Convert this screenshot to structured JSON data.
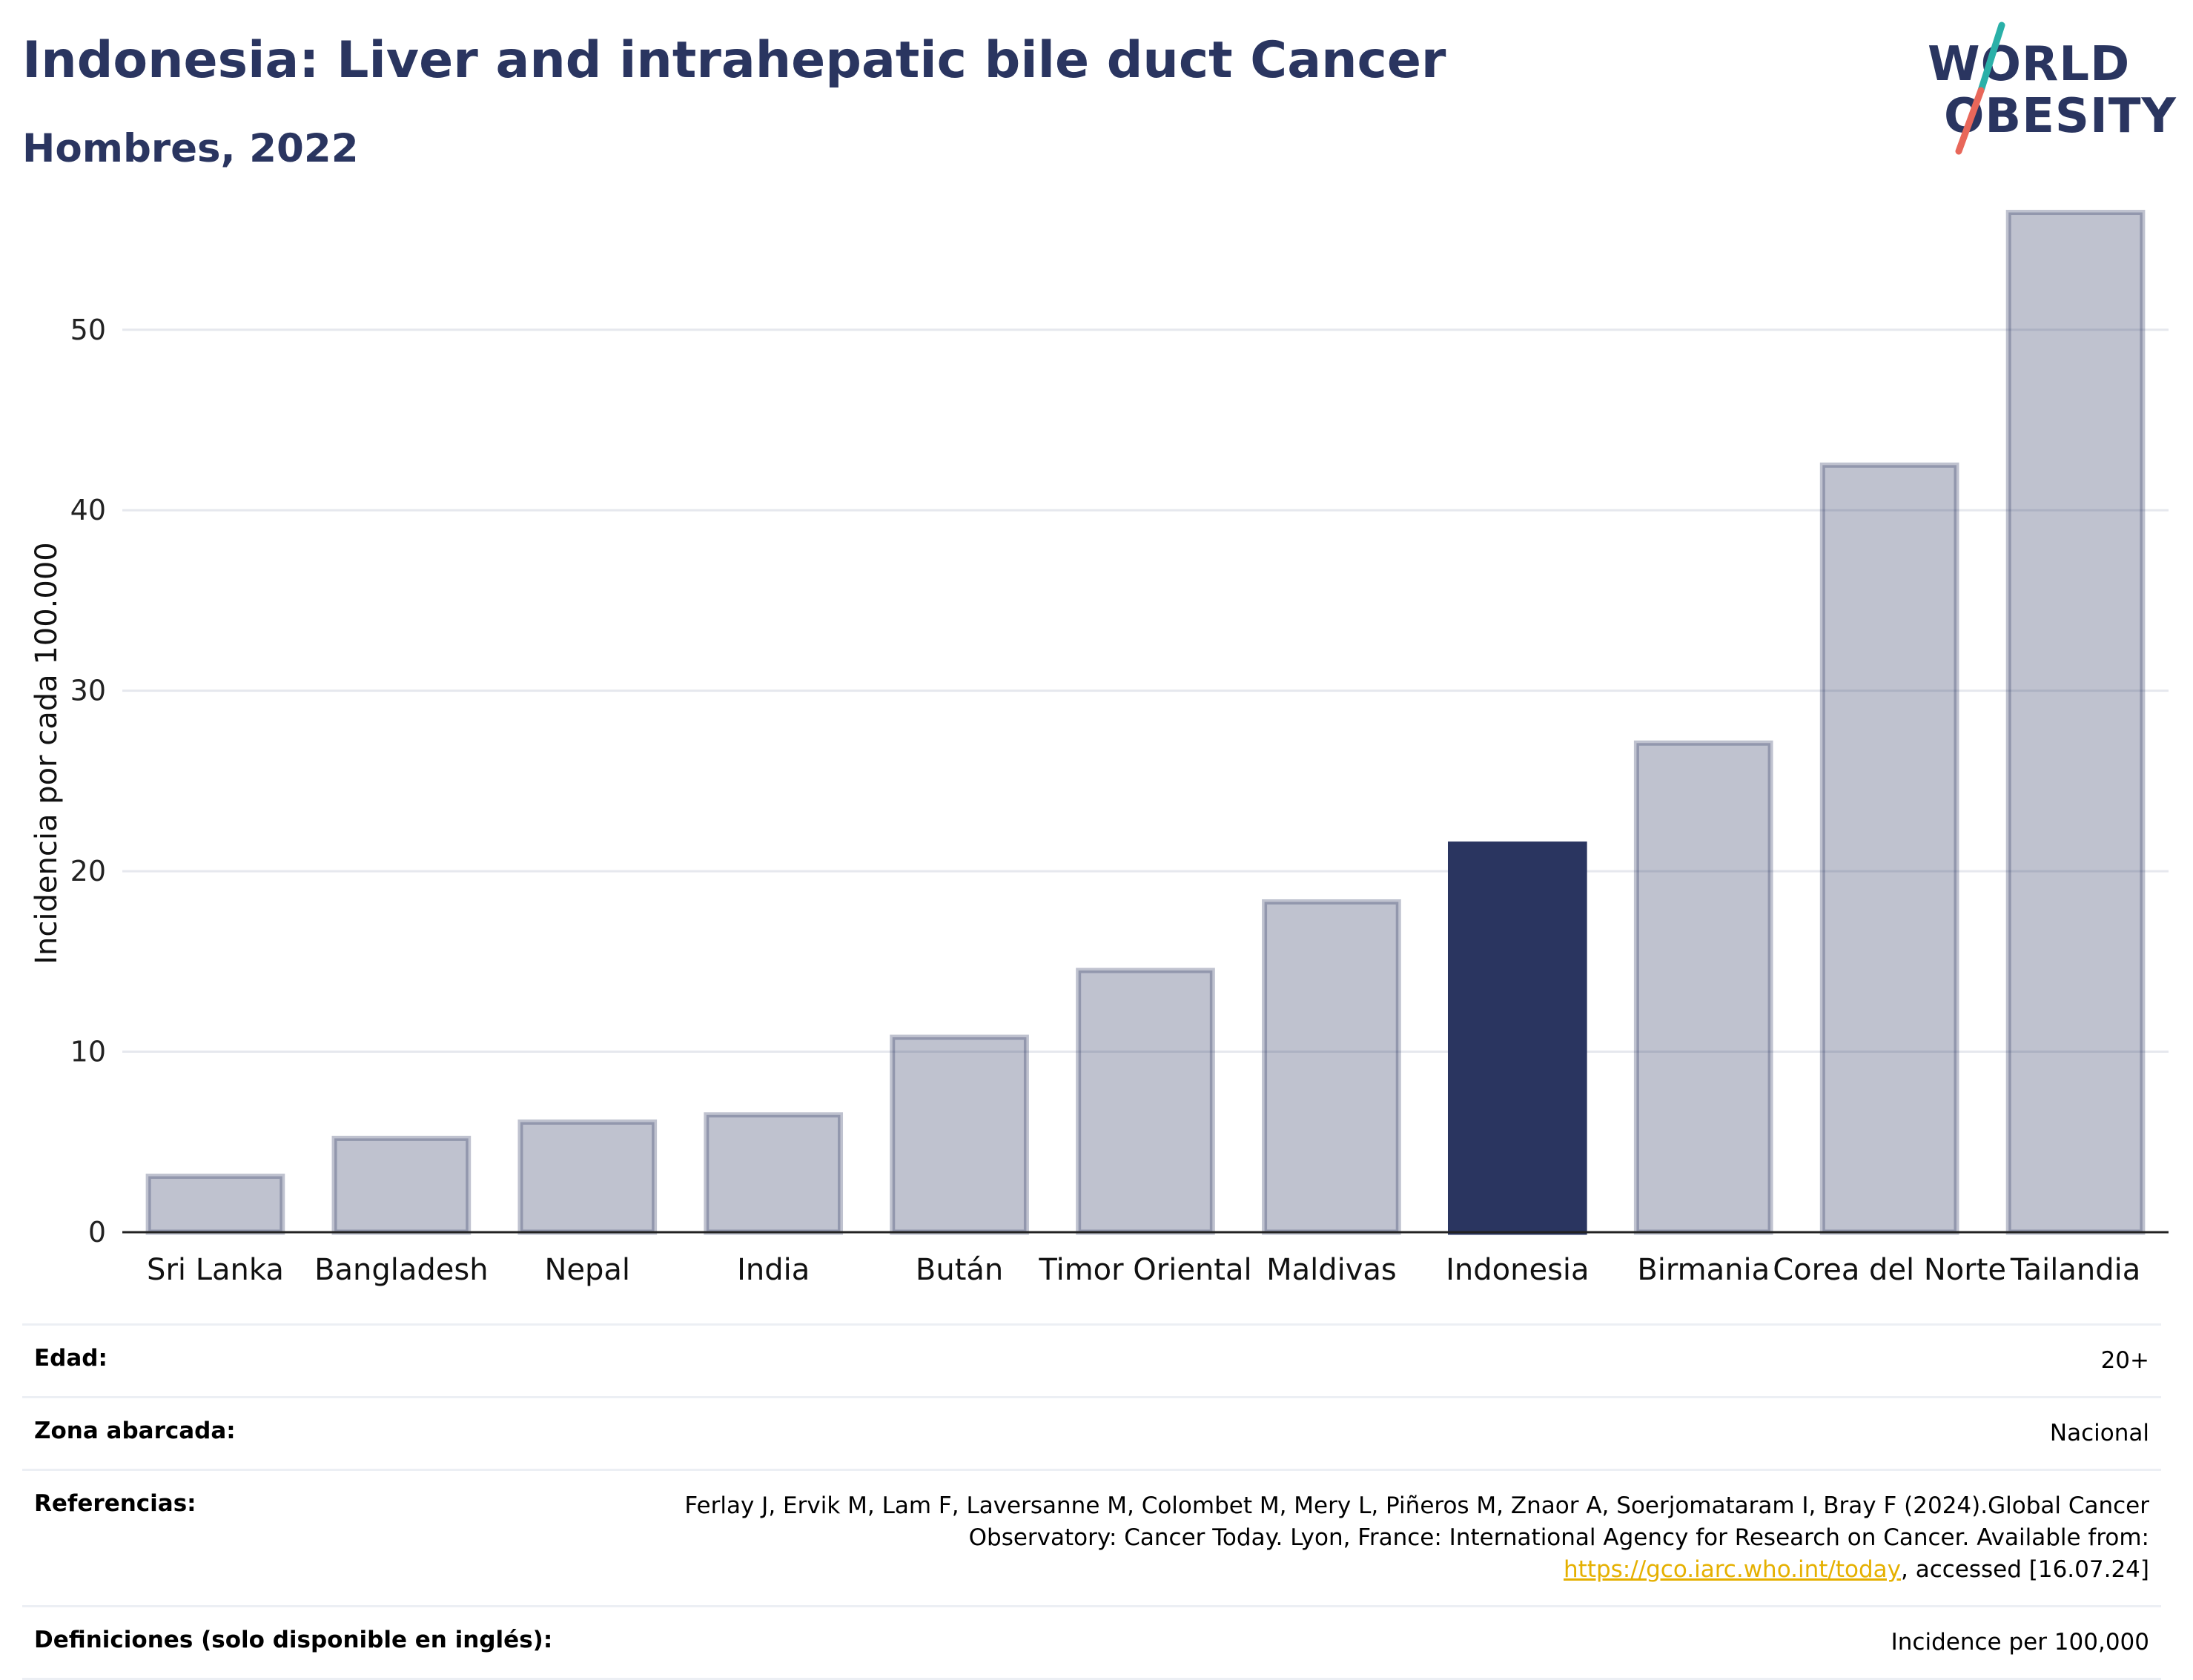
{
  "header": {
    "title": "Indonesia: Liver and intrahepatic bile duct Cancer",
    "subtitle": "Hombres, 2022"
  },
  "logo": {
    "line1": "WORLD",
    "line2": "OBESITY",
    "slash_colors": [
      "#2ab0a8",
      "#e8675a"
    ]
  },
  "colors": {
    "highlight": "#2a3560",
    "bar": "#2a3560",
    "grid": "#e6e8ee",
    "link": "#e5b000"
  },
  "chart_data": {
    "type": "bar",
    "title": "",
    "xlabel": "",
    "ylabel": "Incidencia por cada 100.000",
    "categories": [
      "Sri Lanka",
      "Bangladesh",
      "Nepal",
      "India",
      "Bután",
      "Timor Oriental",
      "Maldivas",
      "Indonesia",
      "Birmania",
      "Corea del Norte",
      "Tailandia"
    ],
    "values": [
      3.1,
      5.2,
      6.1,
      6.5,
      10.8,
      14.5,
      18.3,
      21.5,
      27.1,
      42.5,
      56.5
    ],
    "highlight": "Indonesia",
    "yticks": [
      0,
      10,
      20,
      30,
      40,
      50
    ],
    "ylim": [
      0,
      58
    ],
    "grid": true
  },
  "meta": {
    "rows": [
      {
        "label": "Edad:",
        "value": "20+"
      },
      {
        "label": "Zona abarcada:",
        "value": "Nacional"
      },
      {
        "label": "Referencias:",
        "value_pre": "Ferlay J, Ervik M, Lam F, Laversanne M, Colombet M, Mery L, Piñeros M, Znaor A, Soerjomataram I, Bray F (2024).Global Cancer Observatory: Cancer Today. Lyon, France: International Agency for Research on Cancer. Available from: ",
        "link": "https://gco.iarc.who.int/today",
        "value_post": ", accessed [16.07.24]"
      },
      {
        "label": "Definiciones (solo disponible en inglés):",
        "value": "Incidence per 100,000"
      }
    ]
  }
}
